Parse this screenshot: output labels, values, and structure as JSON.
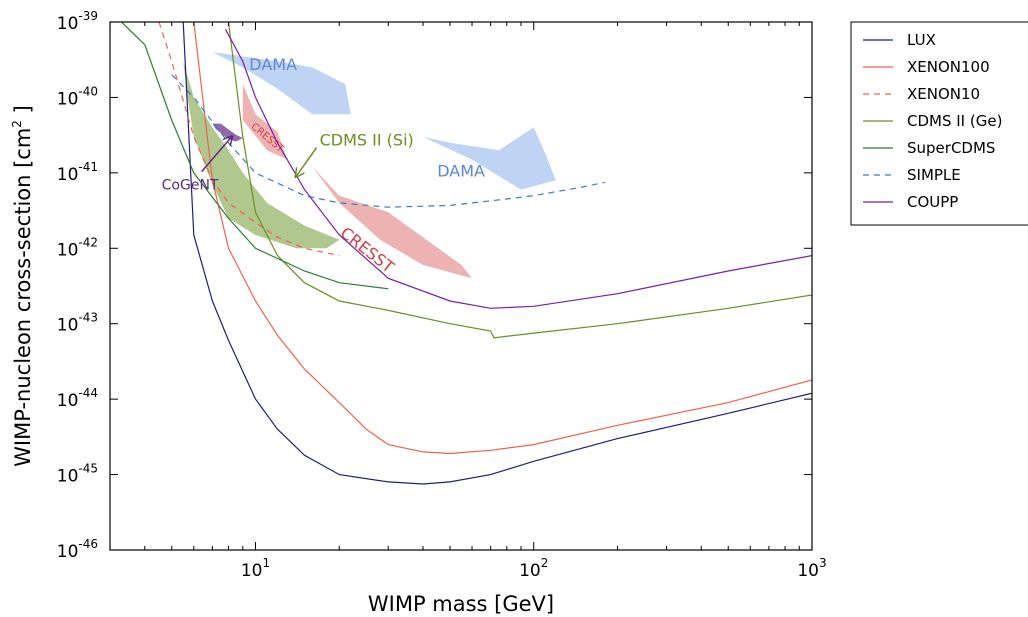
{
  "chart_data": {
    "type": "line",
    "xlabel": "WIMP mass [GeV]",
    "ylabel_main": "WIMP-nucleon cross-section [cm",
    "ylabel_sup": "2",
    "ylabel_end": " ]",
    "x_scale": "log",
    "y_scale": "log",
    "xlim": [
      3,
      1000
    ],
    "ylim": [
      1e-46,
      1e-39
    ],
    "x_ticks": [
      {
        "value": 10,
        "base": "10",
        "exp": "1"
      },
      {
        "value": 100,
        "base": "10",
        "exp": "2"
      },
      {
        "value": 1000,
        "base": "10",
        "exp": "3"
      }
    ],
    "y_ticks": [
      {
        "value": 1e-39,
        "base": "10",
        "exp": "-39"
      },
      {
        "value": 1e-40,
        "base": "10",
        "exp": "-40"
      },
      {
        "value": 1e-41,
        "base": "10",
        "exp": "-41"
      },
      {
        "value": 1e-42,
        "base": "10",
        "exp": "-42"
      },
      {
        "value": 1e-43,
        "base": "10",
        "exp": "-43"
      },
      {
        "value": 1e-44,
        "base": "10",
        "exp": "-44"
      },
      {
        "value": 1e-45,
        "base": "10",
        "exp": "-45"
      },
      {
        "value": 1e-46,
        "base": "10",
        "exp": "-46"
      }
    ],
    "grid": false,
    "legend_position": "outside-right",
    "series": [
      {
        "name": "LUX",
        "color": "#1f1f7a",
        "dash": "solid",
        "x": [
          5.5,
          6,
          7,
          8,
          10,
          12,
          15,
          20,
          30,
          40,
          50,
          70,
          100,
          200,
          500,
          1000
        ],
        "y": [
          1e-39,
          1.5e-42,
          2e-43,
          6e-44,
          1e-44,
          4e-45,
          1.8e-45,
          1e-45,
          8e-46,
          7.5e-46,
          8e-46,
          1e-45,
          1.5e-45,
          3e-45,
          6.5e-45,
          1.2e-44
        ]
      },
      {
        "name": "XENON100",
        "color": "#f0624d",
        "dash": "solid",
        "x": [
          6,
          7,
          8,
          10,
          12,
          15,
          20,
          25,
          30,
          40,
          50,
          70,
          100,
          200,
          500,
          1000
        ],
        "y": [
          1e-39,
          8e-42,
          1e-42,
          2e-43,
          7e-44,
          2.5e-44,
          9e-45,
          4e-45,
          2.5e-45,
          2e-45,
          1.9e-45,
          2.1e-45,
          2.5e-45,
          4.5e-45,
          9e-45,
          1.8e-44
        ]
      },
      {
        "name": "XENON10",
        "color": "#f0624d",
        "dash": "dashed",
        "x": [
          4.5,
          5,
          6,
          7,
          8,
          10,
          12,
          15,
          20
        ],
        "y": [
          1e-39,
          3e-40,
          3e-41,
          8e-42,
          4e-42,
          2.2e-42,
          1.4e-42,
          1e-42,
          8e-43
        ]
      },
      {
        "name": "CDMS II (Ge)",
        "color": "#6b8e23",
        "dash": "solid",
        "x": [
          8,
          9,
          10,
          12,
          15,
          20,
          30,
          50,
          70,
          72,
          100,
          200,
          500,
          1000
        ],
        "y": [
          1e-39,
          3e-41,
          3e-42,
          8e-43,
          3.5e-43,
          2e-43,
          1.5e-43,
          1e-43,
          8e-44,
          6.5e-44,
          7.5e-44,
          1e-43,
          1.6e-43,
          2.4e-43
        ]
      },
      {
        "name": "SuperCDMS",
        "color": "#2e7d32",
        "dash": "solid",
        "x": [
          3.3,
          4,
          5,
          6,
          8,
          10,
          15,
          20,
          30
        ],
        "y": [
          1e-39,
          5e-40,
          5e-41,
          1e-41,
          2.5e-42,
          1e-42,
          5e-43,
          3.5e-43,
          2.9e-43
        ]
      },
      {
        "name": "SIMPLE",
        "color": "#3a7dbf",
        "dash": "dashed",
        "x": [
          5,
          6,
          8,
          10,
          15,
          20,
          30,
          50,
          80,
          100,
          150,
          180
        ],
        "y": [
          2e-40,
          1e-40,
          2.5e-41,
          1e-41,
          5e-42,
          4e-42,
          3.5e-42,
          3.7e-42,
          4.5e-42,
          5e-42,
          6.5e-42,
          7.5e-42
        ]
      },
      {
        "name": "COUPP",
        "color": "#7b1fa2",
        "dash": "solid",
        "x": [
          7.8,
          9,
          10,
          12,
          15,
          20,
          30,
          50,
          70,
          100,
          200,
          500,
          1000
        ],
        "y": [
          8e-40,
          3e-40,
          1e-40,
          2.5e-41,
          6e-42,
          1.5e-42,
          4e-43,
          2e-43,
          1.6e-43,
          1.7e-43,
          2.5e-43,
          5e-43,
          8e-43
        ]
      }
    ],
    "regions": [
      {
        "label": "DAMA",
        "color": "#a9c4f0",
        "opacity": 0.75,
        "label_color": "#5b87d4",
        "label_x": 9.5,
        "label_y": 2.3e-40,
        "label_size": 16,
        "label_rotate": 0,
        "points": [
          [
            7,
            4e-40
          ],
          [
            9,
            2.5e-40
          ],
          [
            12,
            1.3e-40
          ],
          [
            16,
            6e-41
          ],
          [
            22,
            6e-41
          ],
          [
            21,
            1.5e-40
          ],
          [
            16,
            2.5e-40
          ],
          [
            12,
            3e-40
          ]
        ]
      },
      {
        "label": "DAMA",
        "color": "#a9c4f0",
        "opacity": 0.75,
        "label_color": "#5b87d4",
        "label_x": 45,
        "label_y": 9e-42,
        "label_size": 16,
        "label_rotate": 0,
        "points": [
          [
            30,
            3e-41
          ],
          [
            40,
            3e-41
          ],
          [
            60,
            1.5e-41
          ],
          [
            90,
            6e-42
          ],
          [
            120,
            8e-42
          ],
          [
            110,
            1.8e-41
          ],
          [
            100,
            4e-41
          ],
          [
            75,
            2e-41
          ],
          [
            50,
            2.5e-41
          ],
          [
            40,
            3e-41
          ]
        ]
      },
      {
        "label": "CRESST",
        "color": "#e8a0a0",
        "opacity": 0.8,
        "label_color": "#d04040",
        "label_x": 9.6,
        "label_y": 4e-41,
        "label_size": 10,
        "label_rotate": 40,
        "points": [
          [
            9,
            1.5e-40
          ],
          [
            10,
            6e-41
          ],
          [
            12,
            3.5e-41
          ],
          [
            13,
            1.5e-41
          ],
          [
            11,
            2e-41
          ],
          [
            9,
            5e-41
          ]
        ]
      },
      {
        "label": "CRESST",
        "color": "#e8a0a0",
        "opacity": 0.8,
        "label_color": "#d04040",
        "label_x": 20,
        "label_y": 1.5e-42,
        "label_size": 16,
        "label_rotate": 38,
        "points": [
          [
            16,
            1.2e-41
          ],
          [
            20,
            4e-42
          ],
          [
            28,
            1.3e-42
          ],
          [
            40,
            6e-43
          ],
          [
            60,
            4e-43
          ],
          [
            55,
            6e-43
          ],
          [
            30,
            3e-42
          ],
          [
            20,
            5e-42
          ]
        ]
      },
      {
        "label": "",
        "color": "#8fb05e",
        "opacity": 0.7,
        "label_color": "#6b8e23",
        "points": [
          [
            5.5,
            3e-40
          ],
          [
            6,
            1e-40
          ],
          [
            7,
            4e-41
          ],
          [
            8,
            2e-41
          ],
          [
            9,
            1e-41
          ],
          [
            11,
            4e-42
          ],
          [
            15,
            2e-42
          ],
          [
            20,
            1.3e-42
          ],
          [
            18,
            1e-42
          ],
          [
            14,
            1e-42
          ],
          [
            10,
            1.5e-42
          ],
          [
            8,
            2.5e-42
          ],
          [
            7,
            7e-42
          ],
          [
            6,
            3e-41
          ],
          [
            5.7,
            1e-40
          ]
        ]
      },
      {
        "label": "",
        "color": "#7b4f9e",
        "opacity": 0.85,
        "label_color": "#5b2c82",
        "points": [
          [
            7,
            4.5e-41
          ],
          [
            7.5,
            4.5e-41
          ],
          [
            8.5,
            3.2e-41
          ],
          [
            9,
            2.9e-41
          ],
          [
            8.5,
            2.6e-41
          ],
          [
            8,
            2.8e-41
          ],
          [
            7.2,
            3.8e-41
          ]
        ]
      }
    ],
    "annotations": [
      {
        "text": "CDMS II (Si)",
        "color": "#6b8e23",
        "text_x": 17,
        "text_y": 2.3e-41,
        "arrow_to_x": 14,
        "arrow_to_y": 9e-42
      },
      {
        "text": "CoGeNT",
        "color": "#5b2c82",
        "text_x": 4.6,
        "text_y": 6e-42,
        "arrow_to_x": 8.2,
        "arrow_to_y": 3e-41
      }
    ]
  }
}
